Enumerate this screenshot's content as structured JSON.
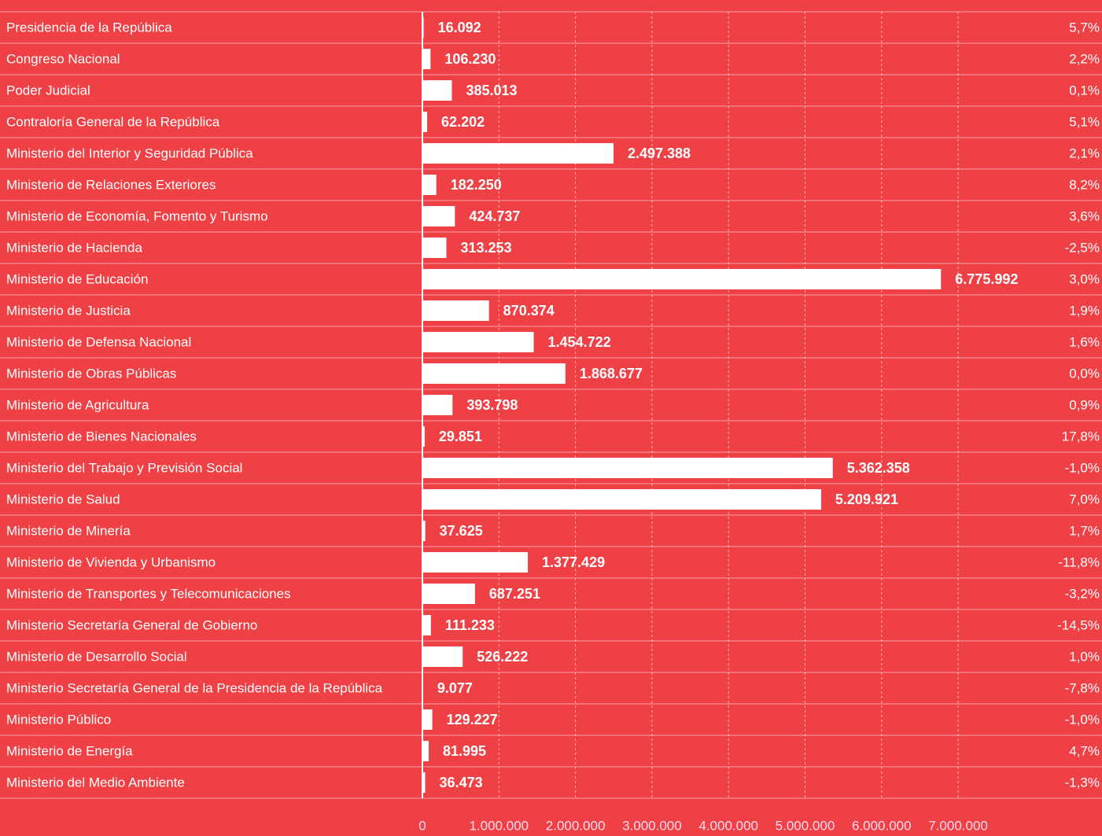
{
  "chart_data": {
    "type": "barh",
    "categories": [
      "Presidencia de la República",
      "Congreso Nacional",
      "Poder Judicial",
      "Contraloría General de la República",
      "Ministerio del Interior y Seguridad Pública",
      "Ministerio de Relaciones Exteriores",
      "Ministerio de Economía, Fomento y Turismo",
      "Ministerio de Hacienda",
      "Ministerio de Educación",
      "Ministerio de Justicia",
      "Ministerio de Defensa Nacional",
      "Ministerio de Obras Públicas",
      "Ministerio de Agricultura",
      "Ministerio de Bienes Nacionales",
      "Ministerio del Trabajo y Previsión Social",
      "Ministerio de Salud",
      "Ministerio de Minería",
      "Ministerio de Vivienda y Urbanismo",
      "Ministerio de Transportes y Telecomunicaciones",
      "Ministerio Secretaría General de Gobierno",
      "Ministerio de Desarrollo Social",
      "Ministerio Secretaría General de la Presidencia de la República",
      "Ministerio Público",
      "Ministerio de Energía",
      "Ministerio del Medio Ambiente"
    ],
    "values": [
      16092,
      106230,
      385013,
      62202,
      2497388,
      182250,
      424737,
      313253,
      6775992,
      870374,
      1454722,
      1868677,
      393798,
      29851,
      5362358,
      5209921,
      37625,
      1377429,
      687251,
      111233,
      526222,
      9077,
      129227,
      81995,
      36473
    ],
    "value_labels": [
      "16.092",
      "106.230",
      "385.013",
      "62.202",
      "2.497.388",
      "182.250",
      "424.737",
      "313.253",
      "6.775.992",
      "870.374",
      "1.454.722",
      "1.868.677",
      "393.798",
      "29.851",
      "5.362.358",
      "5.209.921",
      "37.625",
      "1.377.429",
      "687.251",
      "111.233",
      "526.222",
      "9.077",
      "129.227",
      "81.995",
      "36.473"
    ],
    "changes": [
      "5,7%",
      "2,2%",
      "0,1%",
      "5,1%",
      "2,1%",
      "8,2%",
      "3,6%",
      "-2,5%",
      "3,0%",
      "1,9%",
      "1,6%",
      "0,0%",
      "0,9%",
      "17,8%",
      "-1,0%",
      "7,0%",
      "1,7%",
      "-11,8%",
      "-3,2%",
      "-14,5%",
      "1,0%",
      "-7,8%",
      "-1,0%",
      "4,7%",
      "-1,3%"
    ],
    "color": "#ffffff",
    "xlim": [
      0,
      8880000
    ],
    "xticks": [
      0,
      {
        "value": 1000000,
        "label": "1.000.000"
      },
      {
        "value": 2000000,
        "label": "2.000.000"
      },
      {
        "value": 3000000,
        "label": "3.000.000"
      },
      {
        "value": 4000000,
        "label": "4.000.000"
      },
      {
        "value": 5000000,
        "label": "5.000.000"
      },
      {
        "value": 6000000,
        "label": "6.000.000"
      },
      {
        "value": 7000000,
        "label": "7.000.000"
      }
    ],
    "grid": true
  }
}
